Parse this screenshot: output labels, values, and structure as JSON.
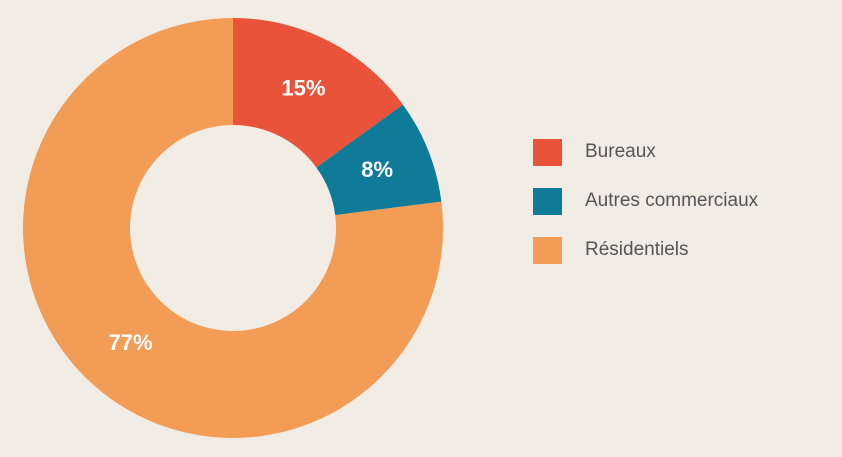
{
  "chart_data": {
    "type": "pie",
    "donut": true,
    "categories": [
      "Bureaux",
      "Autres commerciaux",
      "Résidentiels"
    ],
    "values": [
      15,
      8,
      77
    ],
    "value_labels": [
      "15%",
      "8%",
      "77%"
    ],
    "colors": [
      "#e8533a",
      "#0f7b99",
      "#f39c55"
    ],
    "legend": "right"
  }
}
